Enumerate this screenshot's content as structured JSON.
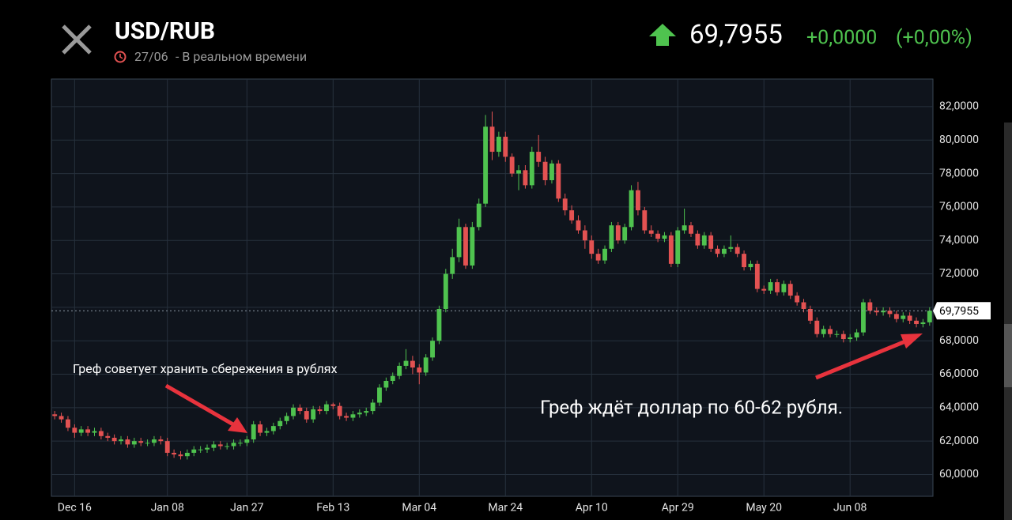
{
  "header": {
    "title": "USD/RUB",
    "date": "27/06",
    "status": "- В реальном времени",
    "price": "69,7955",
    "change": "+0,0000",
    "change_pct": "(+0,00%)"
  },
  "chart_data": {
    "type": "candlestick",
    "annotations": [
      "Греф советует хранить сбережения в рублях",
      "Греф ждёт доллар по 60-62 рубля."
    ],
    "up_color": "#4fc34f",
    "down_color": "#e35252",
    "grid": true,
    "xlim": [
      -0.5,
      132.5
    ],
    "xticks": [
      {
        "value": 3,
        "label": "Dec 16"
      },
      {
        "value": 17,
        "label": "Jan 08"
      },
      {
        "value": 29,
        "label": "Jan 27"
      },
      {
        "value": 42,
        "label": "Feb 13"
      },
      {
        "value": 55,
        "label": "Mar 04"
      },
      {
        "value": 68,
        "label": "Mar 24"
      },
      {
        "value": 81,
        "label": "Apr 10"
      },
      {
        "value": 94,
        "label": "Apr 29"
      },
      {
        "value": 107,
        "label": "May 20"
      },
      {
        "value": 120,
        "label": "Jun 08"
      }
    ],
    "ylim": [
      58.7,
      83.65
    ],
    "yticks": [
      {
        "value": 60,
        "label": "60,0000"
      },
      {
        "value": 62,
        "label": "62,0000"
      },
      {
        "value": 64,
        "label": "64,0000"
      },
      {
        "value": 66,
        "label": "66,0000"
      },
      {
        "value": 68,
        "label": "68,0000"
      },
      {
        "value": 70,
        "label": "70,0000"
      },
      {
        "value": 72,
        "label": "72,0000"
      },
      {
        "value": 74,
        "label": "74,0000"
      },
      {
        "value": 76,
        "label": "76,0000"
      },
      {
        "value": 78,
        "label": "78,0000"
      },
      {
        "value": 80,
        "label": "80,0000"
      },
      {
        "value": 82,
        "label": "82,0000"
      }
    ],
    "open": [
      63.6,
      63.5,
      63.3,
      62.8,
      62.5,
      62.7,
      62.5,
      62.6,
      62.3,
      62.2,
      62.0,
      62.1,
      61.8,
      62.0,
      61.9,
      61.9,
      62.1,
      62.0,
      61.3,
      61.2,
      61.1,
      61.3,
      61.5,
      61.5,
      61.6,
      61.8,
      61.7,
      61.7,
      61.9,
      61.9,
      62.1,
      63.0,
      62.5,
      62.6,
      62.9,
      63.2,
      63.5,
      64.0,
      63.8,
      63.3,
      63.9,
      63.8,
      64.2,
      64.1,
      63.5,
      63.4,
      63.6,
      63.7,
      63.8,
      64.3,
      65.2,
      65.6,
      65.9,
      66.5,
      66.8,
      66.4,
      66.1,
      67.0,
      68.0,
      69.9,
      72.0,
      73.0,
      74.8,
      72.5,
      74.8,
      76.2,
      80.8,
      79.3,
      80.2,
      79.0,
      78.0,
      78.2,
      77.3,
      79.3,
      78.7,
      77.6,
      78.6,
      76.5,
      75.8,
      75.2,
      74.6,
      74.0,
      73.2,
      72.8,
      73.5,
      74.9,
      74.0,
      74.8,
      77.0,
      75.8,
      74.6,
      74.4,
      74.1,
      74.3,
      72.6,
      74.6,
      74.9,
      74.4,
      73.7,
      74.3,
      73.5,
      73.2,
      73.5,
      73.6,
      73.2,
      72.4,
      72.6,
      71.1,
      71.0,
      71.5,
      70.9,
      71.4,
      70.7,
      70.3,
      69.9,
      69.2,
      68.4,
      68.7,
      68.4,
      68.4,
      68.1,
      68.2,
      68.5,
      70.3,
      69.8,
      69.7,
      69.8,
      69.6,
      69.3,
      69.5,
      69.2,
      69.0,
      69.1
    ],
    "high": [
      63.8,
      63.7,
      63.5,
      63.0,
      62.9,
      62.9,
      62.8,
      62.8,
      62.5,
      62.4,
      62.3,
      62.3,
      62.2,
      62.2,
      62.1,
      62.3,
      62.3,
      62.2,
      61.5,
      61.4,
      61.5,
      61.7,
      61.7,
      61.8,
      62.0,
      62.0,
      61.9,
      62.1,
      62.1,
      62.3,
      63.2,
      63.2,
      62.8,
      63.1,
      63.4,
      63.7,
      64.2,
      64.2,
      64.0,
      64.1,
      64.1,
      64.4,
      64.3,
      64.3,
      63.7,
      63.8,
      63.9,
      64.0,
      64.5,
      65.4,
      65.8,
      66.1,
      66.7,
      67.5,
      67.1,
      66.6,
      67.2,
      68.2,
      70.1,
      72.3,
      73.5,
      75.3,
      75.0,
      75.1,
      76.5,
      81.5,
      81.7,
      80.5,
      80.5,
      79.2,
      78.5,
      78.5,
      79.6,
      80.3,
      79.0,
      78.8,
      78.8,
      76.8,
      76.1,
      75.5,
      74.9,
      74.3,
      73.5,
      73.7,
      75.1,
      75.1,
      75.0,
      77.3,
      77.5,
      76.0,
      74.9,
      74.6,
      74.5,
      74.5,
      74.8,
      75.9,
      75.1,
      74.6,
      74.5,
      74.5,
      73.7,
      73.7,
      74.3,
      73.8,
      73.4,
      72.8,
      72.8,
      71.3,
      71.7,
      71.7,
      71.6,
      71.6,
      70.9,
      70.5,
      70.1,
      69.4,
      68.9,
      68.9,
      68.6,
      68.6,
      68.4,
      68.7,
      70.5,
      70.5,
      70.0,
      70.0,
      70.0,
      69.8,
      69.7,
      69.7,
      69.4,
      69.3,
      70.0
    ],
    "low": [
      63.3,
      63.1,
      62.6,
      62.2,
      62.3,
      62.3,
      62.3,
      62.1,
      62.0,
      61.8,
      61.8,
      61.6,
      61.6,
      61.7,
      61.7,
      61.7,
      61.8,
      61.1,
      61.0,
      60.9,
      60.9,
      61.1,
      61.3,
      61.3,
      61.4,
      61.5,
      61.5,
      61.5,
      61.7,
      61.7,
      61.9,
      62.3,
      62.3,
      62.4,
      62.7,
      63.0,
      63.3,
      63.6,
      63.1,
      63.1,
      63.6,
      63.6,
      63.9,
      63.3,
      63.2,
      63.2,
      63.4,
      63.5,
      63.6,
      64.1,
      65.0,
      65.4,
      65.7,
      66.3,
      66.0,
      65.4,
      65.9,
      66.8,
      67.8,
      69.7,
      71.7,
      72.7,
      72.3,
      72.3,
      74.6,
      76.0,
      78.8,
      79.0,
      78.7,
      77.8,
      77.0,
      77.1,
      77.1,
      78.4,
      77.3,
      77.4,
      76.3,
      75.5,
      75.0,
      74.4,
      73.5,
      72.9,
      72.6,
      72.6,
      73.3,
      73.8,
      73.8,
      74.6,
      75.5,
      74.4,
      74.2,
      73.9,
      73.9,
      72.4,
      72.4,
      74.4,
      74.2,
      73.5,
      73.5,
      73.3,
      73.0,
      73.0,
      73.3,
      73.0,
      72.2,
      72.2,
      70.9,
      70.8,
      70.8,
      70.7,
      70.7,
      70.5,
      70.1,
      69.7,
      69.0,
      68.2,
      68.2,
      68.2,
      68.2,
      67.9,
      67.9,
      68.0,
      68.3,
      69.6,
      69.5,
      69.5,
      69.4,
      69.1,
      69.1,
      69.0,
      68.8,
      68.8,
      68.9
    ],
    "close": [
      63.5,
      63.3,
      62.8,
      62.5,
      62.7,
      62.5,
      62.6,
      62.3,
      62.2,
      62.0,
      62.1,
      61.8,
      62.0,
      61.9,
      61.9,
      62.1,
      62.0,
      61.3,
      61.2,
      61.1,
      61.3,
      61.5,
      61.5,
      61.6,
      61.8,
      61.7,
      61.7,
      61.9,
      61.9,
      62.1,
      63.0,
      62.5,
      62.6,
      62.9,
      63.2,
      63.5,
      64.0,
      63.8,
      63.3,
      63.9,
      63.8,
      64.2,
      64.1,
      63.5,
      63.4,
      63.6,
      63.7,
      63.8,
      64.3,
      65.2,
      65.6,
      65.9,
      66.5,
      66.8,
      66.4,
      66.1,
      67.0,
      68.0,
      69.9,
      72.0,
      73.0,
      74.8,
      72.5,
      74.8,
      76.2,
      80.8,
      79.3,
      80.2,
      79.0,
      78.0,
      78.2,
      77.3,
      79.3,
      78.7,
      77.6,
      78.6,
      76.5,
      75.8,
      75.2,
      74.6,
      74.0,
      73.2,
      72.8,
      73.5,
      74.9,
      74.0,
      74.8,
      77.0,
      75.8,
      74.6,
      74.4,
      74.1,
      74.3,
      72.6,
      74.6,
      74.9,
      74.4,
      73.7,
      74.3,
      73.5,
      73.2,
      73.5,
      73.6,
      73.2,
      72.4,
      72.6,
      71.1,
      71.0,
      71.5,
      70.9,
      71.4,
      70.7,
      70.3,
      69.9,
      69.2,
      68.4,
      68.7,
      68.4,
      68.4,
      68.1,
      68.2,
      68.5,
      70.3,
      69.8,
      69.7,
      69.8,
      69.6,
      69.3,
      69.5,
      69.2,
      69.0,
      69.1,
      69.7955
    ]
  }
}
